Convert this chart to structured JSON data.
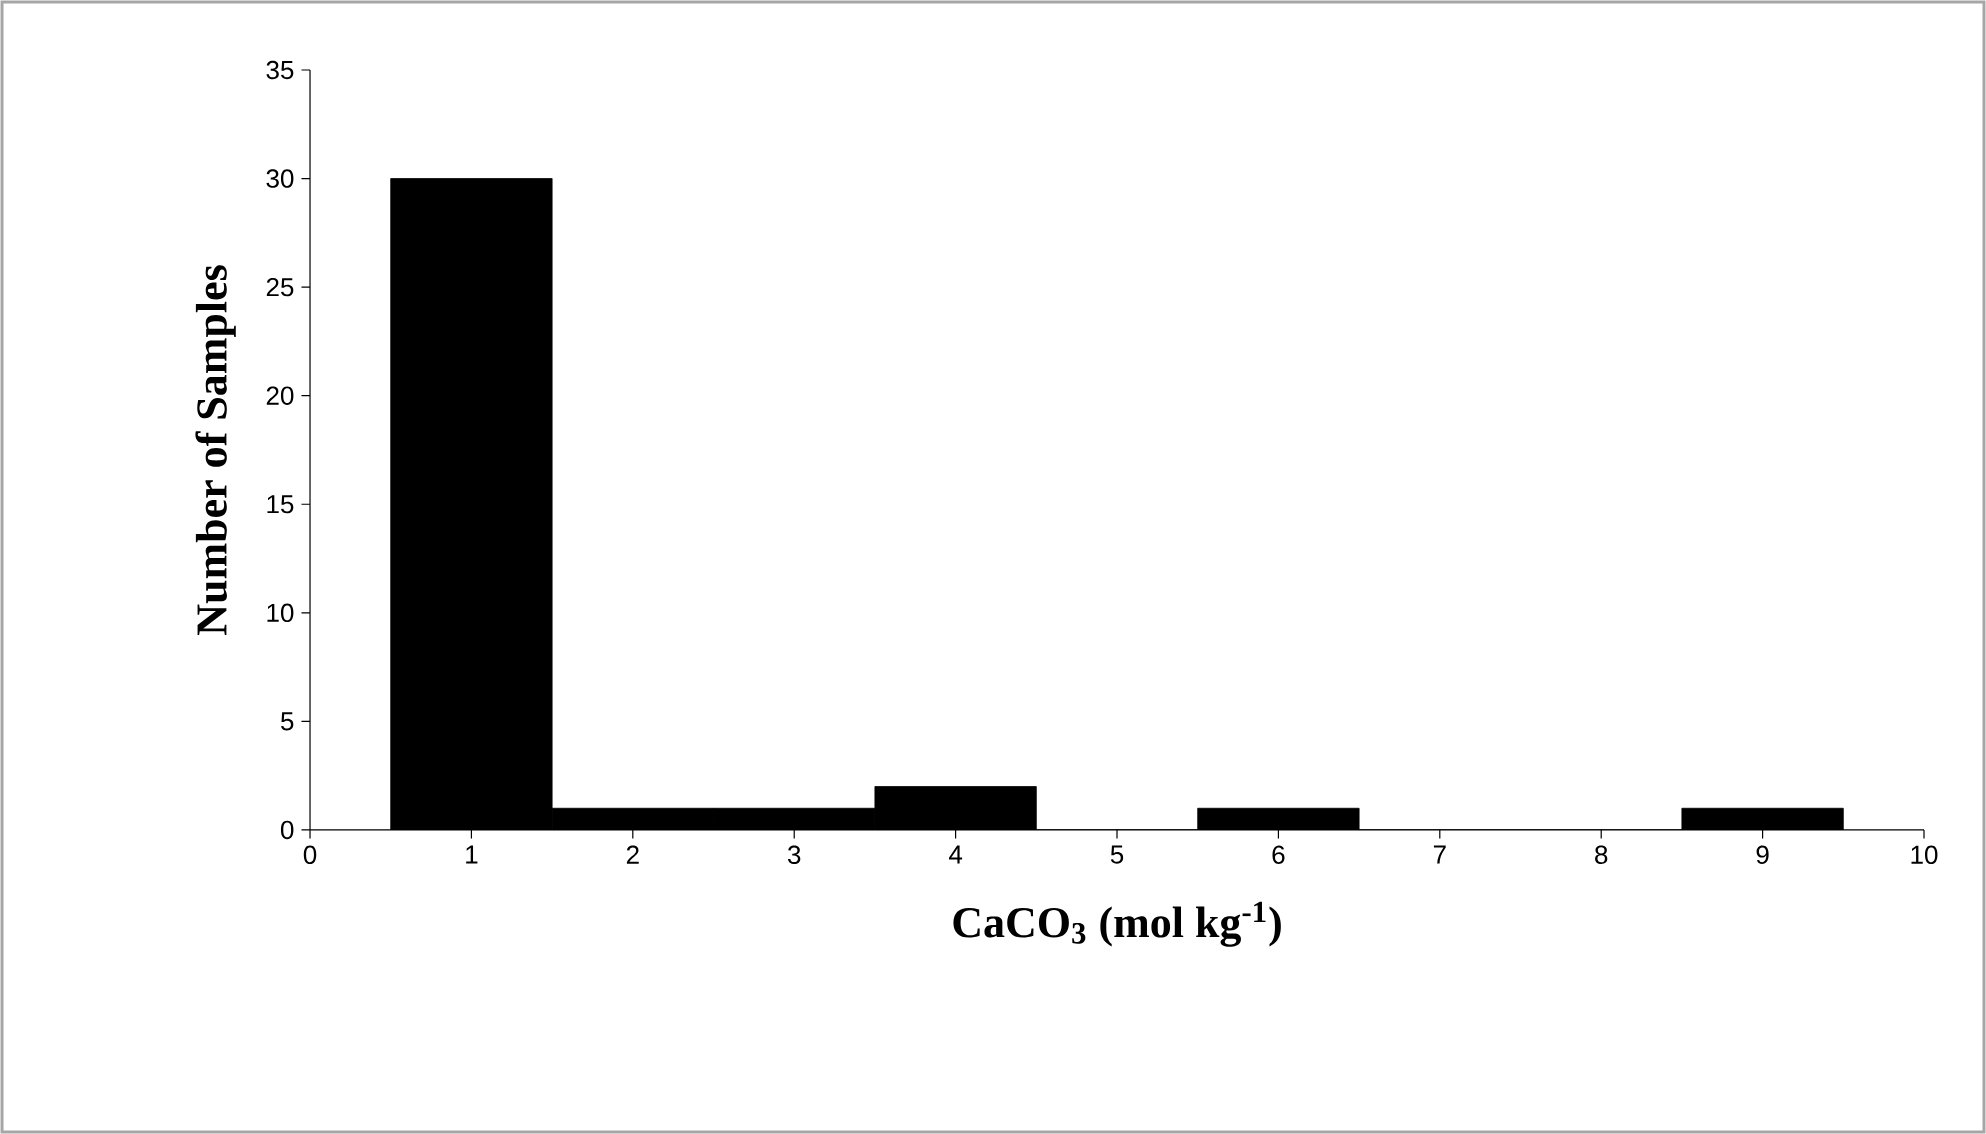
{
  "chart_data": {
    "type": "histogram",
    "xlabel": "CaCO$_{3}$ (mol kg$^{-1}$)",
    "ylabel": "Number of Samples",
    "bins": [
      0.5,
      1.5,
      2.5,
      3.5,
      4.5,
      5.5,
      6.5,
      7.5,
      8.5,
      9.5
    ],
    "values": [
      30,
      1,
      1,
      2,
      0,
      1,
      0,
      0,
      1
    ],
    "color": "#000000",
    "xlim": [
      0,
      10
    ],
    "xticks": [
      0,
      1,
      2,
      3,
      4,
      5,
      6,
      7,
      8,
      9,
      10
    ],
    "ylim": [
      0,
      35
    ],
    "yticks": [
      0,
      5,
      10,
      15,
      20,
      25,
      30,
      35
    ],
    "grid": false
  }
}
